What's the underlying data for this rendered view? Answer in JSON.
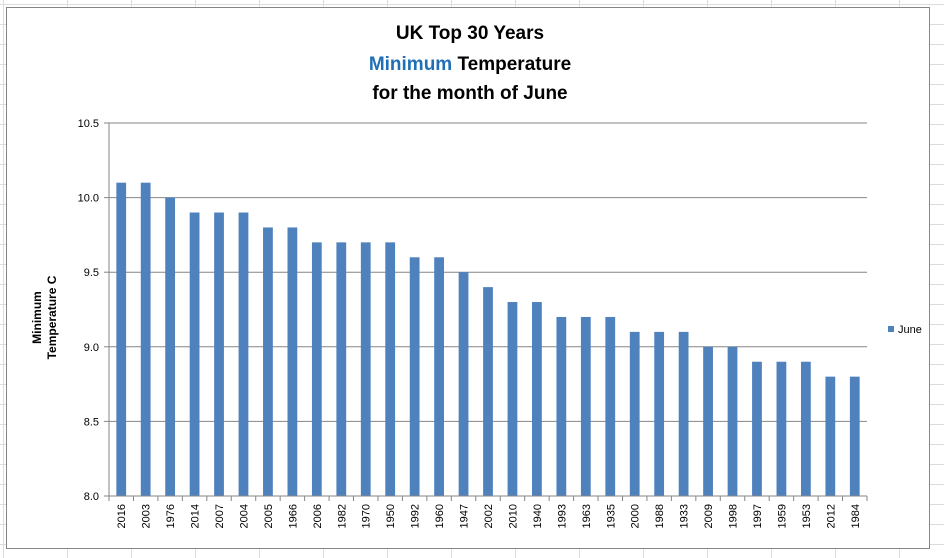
{
  "chart_data": {
    "type": "bar",
    "title_lines": [
      [
        {
          "text": "UK Top 30 Years",
          "color": "#000000"
        }
      ],
      [
        {
          "text": "Minimum",
          "color": "#1f6fb7"
        },
        {
          "text": " Temperature",
          "color": "#000000"
        }
      ],
      [
        {
          "text": "for the month of June",
          "color": "#000000"
        }
      ]
    ],
    "ylabel_lines": [
      "Minimum",
      "Temperature C"
    ],
    "xlabel": "",
    "ylim": [
      8.0,
      10.5
    ],
    "yticks": [
      "8.0",
      "8.5",
      "9.0",
      "9.5",
      "10.0",
      "10.5"
    ],
    "grid": true,
    "legend_position": "right",
    "categories": [
      "2016",
      "2003",
      "1976",
      "2014",
      "2007",
      "2004",
      "2005",
      "1966",
      "2006",
      "1982",
      "1970",
      "1950",
      "1992",
      "1960",
      "1947",
      "2002",
      "2010",
      "1940",
      "1993",
      "1963",
      "1935",
      "2000",
      "1988",
      "1933",
      "2009",
      "1998",
      "1997",
      "1959",
      "1953",
      "2012",
      "1984"
    ],
    "series": [
      {
        "name": "June",
        "color": "#4f81bd",
        "values": [
          10.1,
          10.1,
          10.0,
          9.9,
          9.9,
          9.9,
          9.8,
          9.8,
          9.7,
          9.7,
          9.7,
          9.7,
          9.6,
          9.6,
          9.5,
          9.4,
          9.3,
          9.3,
          9.2,
          9.2,
          9.2,
          9.1,
          9.1,
          9.1,
          9.0,
          9.0,
          8.9,
          8.9,
          8.9,
          8.8,
          8.8
        ]
      }
    ]
  }
}
